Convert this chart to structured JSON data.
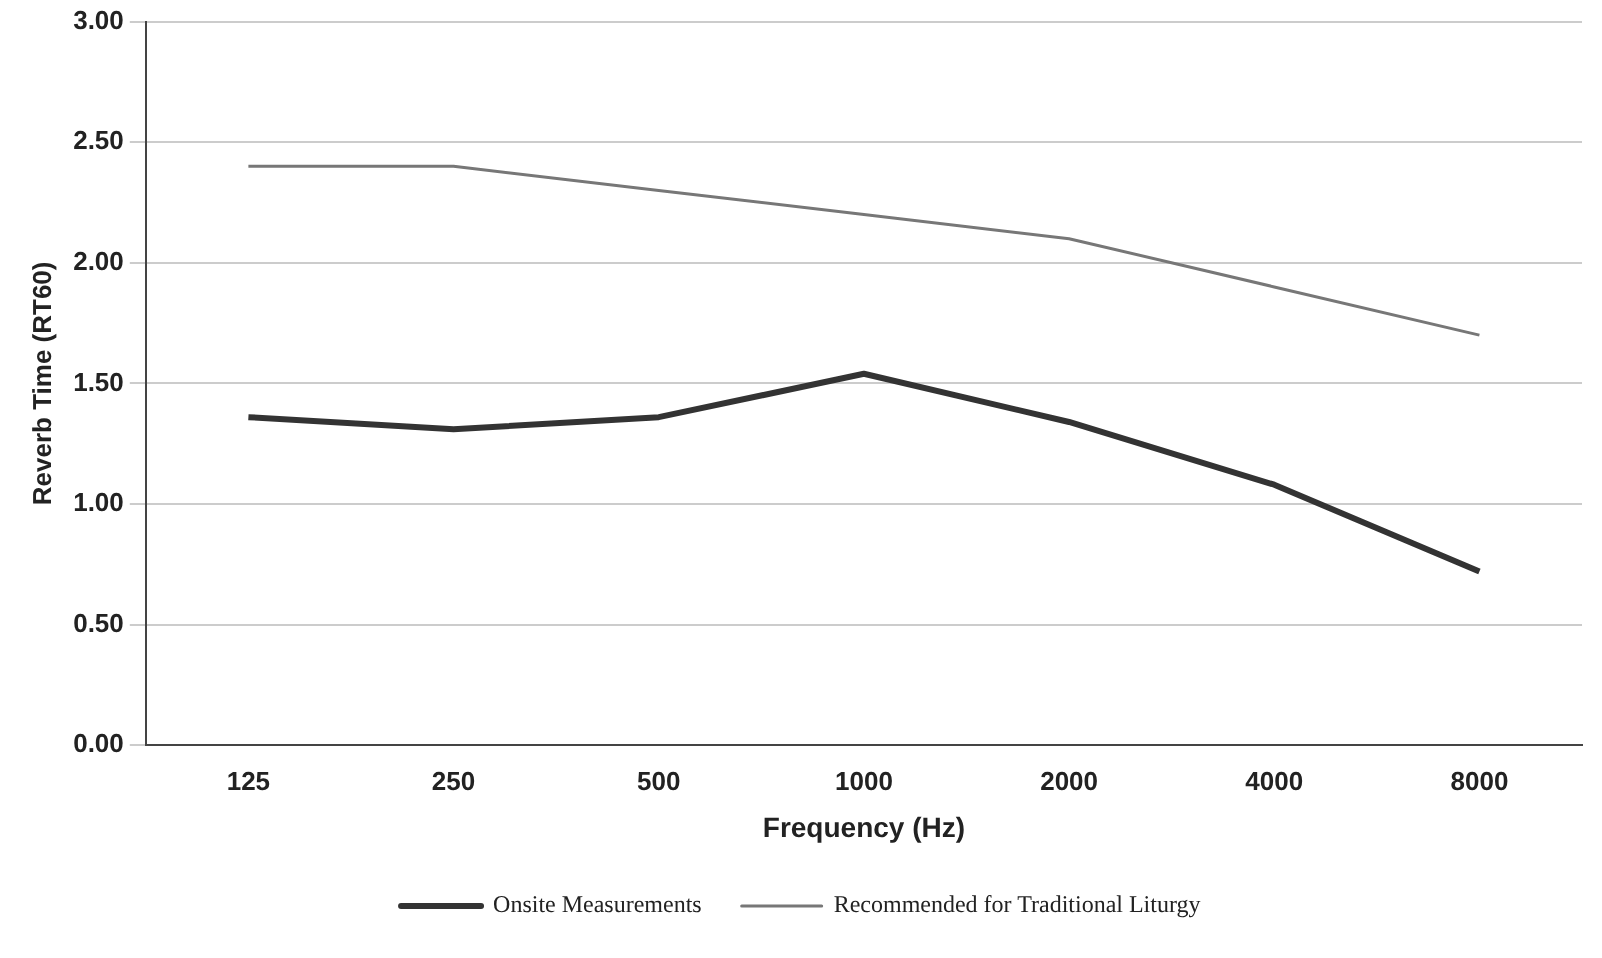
{
  "chart_data": {
    "type": "line",
    "xlabel": "Frequency (Hz)",
    "ylabel": "Reverb Time (RT60)",
    "categories": [
      "125",
      "250",
      "500",
      "1000",
      "2000",
      "4000",
      "8000"
    ],
    "series": [
      {
        "name": "Onsite Measurements",
        "color": "#333333",
        "values": [
          1.36,
          1.31,
          1.36,
          1.54,
          1.34,
          1.08,
          0.72
        ]
      },
      {
        "name": "Recommended for Traditional Liturgy",
        "color": "#777777",
        "values": [
          2.4,
          2.4,
          2.3,
          2.2,
          2.1,
          1.9,
          1.7
        ]
      }
    ],
    "ylim": [
      0,
      3
    ],
    "yticks": [
      {
        "value": 0,
        "label": "0.00"
      },
      {
        "value": 0.5,
        "label": "0.50"
      },
      {
        "value": 1,
        "label": "1.00"
      },
      {
        "value": 1.5,
        "label": "1.50"
      },
      {
        "value": 2,
        "label": "2.00"
      },
      {
        "value": 2.5,
        "label": "2.50"
      },
      {
        "value": 3,
        "label": "3.00"
      }
    ],
    "grid": "y",
    "legend": "bottom",
    "marker": "none",
    "line_style": "solid"
  }
}
